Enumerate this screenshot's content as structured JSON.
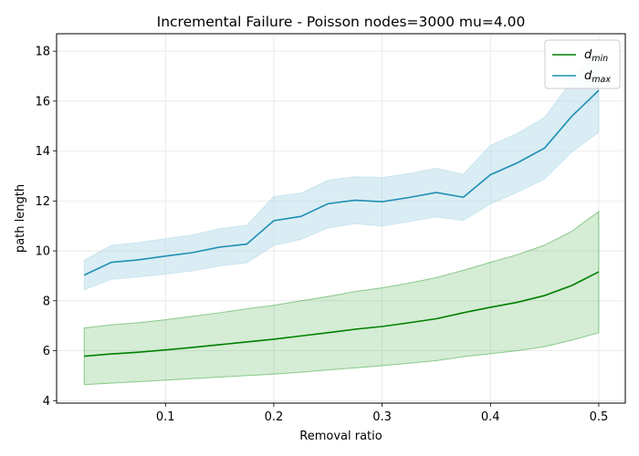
{
  "chart_data": {
    "type": "line",
    "title": "Incremental Failure - Poisson nodes=3000 mu=4.00",
    "xlabel": "Removal ratio",
    "ylabel": "path length",
    "xlim": [
      -0.0005,
      0.5245
    ],
    "ylim": [
      3.9,
      18.7
    ],
    "xticks": [
      0.1,
      0.2,
      0.3,
      0.4,
      0.5
    ],
    "xtick_labels": [
      "0.1",
      "0.2",
      "0.3",
      "0.4",
      "0.5"
    ],
    "yticks": [
      4,
      6,
      8,
      10,
      12,
      14,
      16,
      18
    ],
    "ytick_labels": [
      "4",
      "6",
      "8",
      "10",
      "12",
      "14",
      "16",
      "18"
    ],
    "grid": true,
    "legend_position": "top-right",
    "x": [
      0.025,
      0.05,
      0.075,
      0.1,
      0.125,
      0.15,
      0.175,
      0.2,
      0.225,
      0.25,
      0.275,
      0.3,
      0.325,
      0.35,
      0.375,
      0.4,
      0.425,
      0.45,
      0.475,
      0.5
    ],
    "series": [
      {
        "name": "d_min",
        "legend_main": "d",
        "legend_sub": "min",
        "color": "#008000",
        "band_color": "#2ca02c",
        "values": [
          5.78,
          5.87,
          5.94,
          6.03,
          6.13,
          6.24,
          6.35,
          6.46,
          6.59,
          6.72,
          6.86,
          6.97,
          7.12,
          7.28,
          7.52,
          7.74,
          7.94,
          8.21,
          8.61,
          9.16
        ],
        "lower": [
          4.64,
          4.7,
          4.76,
          4.82,
          4.88,
          4.94,
          5.0,
          5.06,
          5.14,
          5.23,
          5.31,
          5.4,
          5.5,
          5.6,
          5.76,
          5.88,
          6.0,
          6.16,
          6.42,
          6.72
        ],
        "upper": [
          6.91,
          7.04,
          7.12,
          7.24,
          7.38,
          7.52,
          7.68,
          7.82,
          8.0,
          8.17,
          8.37,
          8.52,
          8.71,
          8.93,
          9.22,
          9.54,
          9.85,
          10.23,
          10.78,
          11.58
        ]
      },
      {
        "name": "d_max",
        "legend_main": "d",
        "legend_sub": "max",
        "color": "#1f8fb4",
        "band_color": "#add8e6",
        "values": [
          9.03,
          9.54,
          9.64,
          9.79,
          9.93,
          10.15,
          10.27,
          11.21,
          11.38,
          11.89,
          12.03,
          11.97,
          12.14,
          12.34,
          12.15,
          13.05,
          13.53,
          14.12,
          15.39,
          16.43
        ],
        "lower": [
          8.45,
          8.86,
          8.95,
          9.07,
          9.2,
          9.4,
          9.52,
          10.22,
          10.46,
          10.92,
          11.09,
          10.99,
          11.17,
          11.36,
          11.22,
          11.88,
          12.35,
          12.88,
          13.96,
          14.75
        ],
        "upper": [
          9.63,
          10.22,
          10.33,
          10.49,
          10.64,
          10.89,
          11.02,
          12.18,
          12.31,
          12.83,
          12.97,
          12.94,
          13.1,
          13.31,
          13.07,
          14.23,
          14.71,
          15.35,
          16.82,
          18.08
        ]
      }
    ]
  }
}
